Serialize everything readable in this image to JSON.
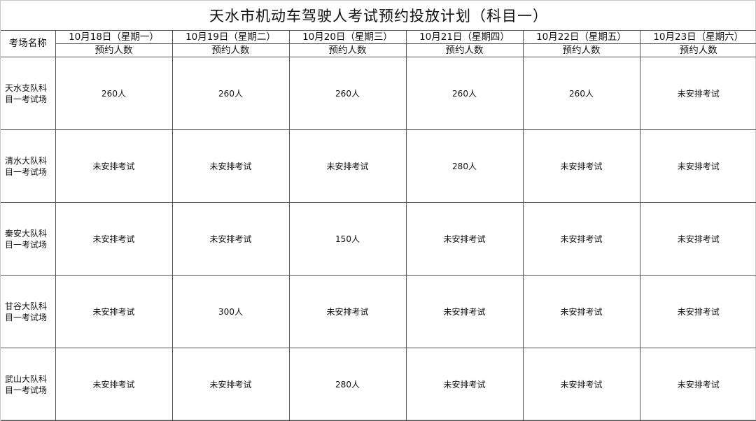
{
  "title": "天水市机动车驾驶人考试预约投放计划（科目一）",
  "header": {
    "venue_label": "考场名称",
    "sub_label": "预约人数",
    "dates": [
      "10月18日（星期一）",
      "10月19日（星期二）",
      "10月20日（星期三）",
      "10月21日（星期四）",
      "10月22日（星期五）",
      "10月23日（星期六）"
    ]
  },
  "rows": [
    {
      "venue": "天水支队科目一考试场",
      "values": [
        "260人",
        "260人",
        "260人",
        "260人",
        "260人",
        "未安排考试"
      ]
    },
    {
      "venue": "清水大队科目一考试场",
      "values": [
        "未安排考试",
        "未安排考试",
        "未安排考试",
        "280人",
        "未安排考试",
        "未安排考试"
      ]
    },
    {
      "venue": "秦安大队科目一考试场",
      "values": [
        "未安排考试",
        "未安排考试",
        "150人",
        "未安排考试",
        "未安排考试",
        "未安排考试"
      ]
    },
    {
      "venue": "甘谷大队科目一考试场",
      "values": [
        "未安排考试",
        "300人",
        "未安排考试",
        "未安排考试",
        "未安排考试",
        "未安排考试"
      ]
    },
    {
      "venue": "武山大队科目一考试场",
      "values": [
        "未安排考试",
        "未安排考试",
        "280人",
        "未安排考试",
        "未安排考试",
        "未安排考试"
      ]
    }
  ]
}
